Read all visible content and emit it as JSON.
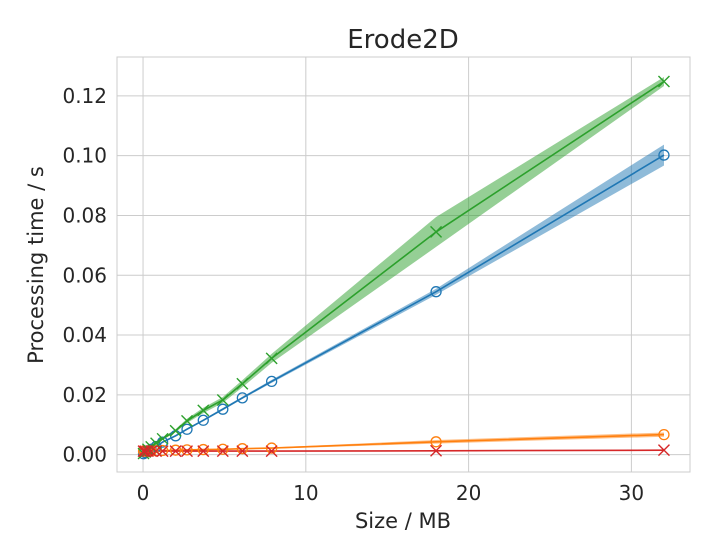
{
  "chart_data": {
    "type": "line",
    "title": "Erode2D",
    "xlabel": "Size / MB",
    "ylabel": "Processing time / s",
    "xlim": [
      -1.6,
      33.6
    ],
    "ylim": [
      -0.0058,
      0.133
    ],
    "xticks": [
      0,
      10,
      20,
      30
    ],
    "xtick_labels": [
      "0",
      "10",
      "20",
      "30"
    ],
    "yticks": [
      0.0,
      0.02,
      0.04,
      0.06,
      0.08,
      0.1,
      0.12
    ],
    "ytick_labels": [
      "0.00",
      "0.02",
      "0.04",
      "0.06",
      "0.08",
      "0.10",
      "0.12"
    ],
    "grid": true,
    "series": [
      {
        "color": "#1f77b4",
        "marker": "circle",
        "x": [
          0.03,
          0.13,
          0.3,
          0.5,
          0.8,
          1.2,
          2.0,
          2.7,
          3.7,
          4.9,
          6.1,
          7.9,
          18.0,
          32.0
        ],
        "y": [
          0.0003,
          0.0007,
          0.0013,
          0.0018,
          0.0027,
          0.0042,
          0.0063,
          0.0085,
          0.0115,
          0.0152,
          0.019,
          0.0245,
          0.0545,
          0.1002
        ],
        "err": [
          0.0001,
          0.0001,
          0.0001,
          0.0001,
          0.0002,
          0.0002,
          0.0003,
          0.0003,
          0.0003,
          0.0004,
          0.0004,
          0.0005,
          0.001,
          0.0035
        ]
      },
      {
        "color": "#ff7f0e",
        "marker": "circle",
        "x": [
          0.03,
          0.13,
          0.3,
          0.5,
          0.8,
          1.2,
          2.0,
          2.7,
          3.7,
          4.9,
          6.1,
          7.9,
          18.0,
          32.0
        ],
        "y": [
          0.0012,
          0.0012,
          0.0012,
          0.0013,
          0.0013,
          0.0014,
          0.0015,
          0.0016,
          0.0017,
          0.0018,
          0.002,
          0.0022,
          0.0043,
          0.0067
        ],
        "err": [
          0.0001,
          0.0001,
          0.0001,
          0.0001,
          0.0001,
          0.0001,
          0.0001,
          0.0001,
          0.0001,
          0.0002,
          0.0002,
          0.0002,
          0.0006,
          0.0007
        ]
      },
      {
        "color": "#2ca02c",
        "marker": "x",
        "x": [
          0.03,
          0.13,
          0.3,
          0.5,
          0.8,
          1.2,
          2.0,
          2.7,
          3.7,
          4.9,
          6.1,
          7.9,
          18.0,
          32.0
        ],
        "y": [
          0.0004,
          0.0009,
          0.0018,
          0.0026,
          0.0038,
          0.0053,
          0.008,
          0.0113,
          0.0148,
          0.0183,
          0.0237,
          0.0322,
          0.0745,
          0.1248
        ],
        "err": [
          0.0001,
          0.0001,
          0.0002,
          0.0002,
          0.0003,
          0.0004,
          0.0005,
          0.0007,
          0.0009,
          0.001,
          0.0012,
          0.0015,
          0.005,
          0.0015
        ]
      },
      {
        "color": "#d62728",
        "marker": "x",
        "x": [
          0.03,
          0.13,
          0.3,
          0.5,
          0.8,
          1.2,
          2.0,
          2.7,
          3.7,
          4.9,
          6.1,
          7.9,
          18.0,
          32.0
        ],
        "y": [
          0.0012,
          0.0012,
          0.0012,
          0.0012,
          0.0012,
          0.0012,
          0.0012,
          0.0012,
          0.0012,
          0.0012,
          0.0012,
          0.0012,
          0.0013,
          0.0015
        ],
        "err": [
          0.0001,
          0.0001,
          0.0001,
          0.0001,
          0.0001,
          0.0001,
          0.0001,
          0.0001,
          0.0001,
          0.0001,
          0.0001,
          0.0001,
          0.0001,
          0.0001
        ]
      }
    ]
  }
}
